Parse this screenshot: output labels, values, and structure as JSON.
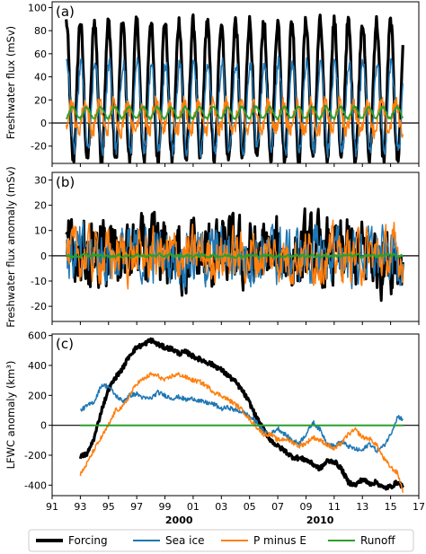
{
  "chart_data": [
    {
      "type": "line",
      "panel_label": "(a)",
      "ylabel": "Freshwater flux (mSv)",
      "xlim": [
        1991,
        2017
      ],
      "ylim": [
        -35,
        105
      ],
      "yticks": [
        -20,
        0,
        20,
        40,
        60,
        80,
        100
      ],
      "zero_line": true,
      "seasonal_series": [
        {
          "name": "Forcing",
          "mean": 28,
          "amplitude": 60,
          "phase": 0.0,
          "noise": 6,
          "color": "#000000",
          "width": 3.2
        },
        {
          "name": "Sea ice",
          "mean": 14,
          "amplitude": 38,
          "phase": 0.05,
          "noise": 6,
          "color": "#1f77b4",
          "width": 1.5
        },
        {
          "name": "P minus E",
          "mean": 5,
          "amplitude": 12,
          "phase": 0.35,
          "noise": 7,
          "color": "#ff7f0e",
          "width": 1.5
        },
        {
          "name": "Runoff",
          "mean": 9,
          "amplitude": 5,
          "phase": 0.45,
          "noise": 1,
          "color": "#2ca02c",
          "width": 1.8
        }
      ]
    },
    {
      "type": "line",
      "panel_label": "(b)",
      "ylabel": "Freshwater flux anomaly (mSv)",
      "xlim": [
        1991,
        2017
      ],
      "ylim": [
        -26,
        33
      ],
      "yticks": [
        -20,
        -10,
        0,
        10,
        20,
        30
      ],
      "zero_line": true,
      "anomaly_series": [
        {
          "name": "Forcing",
          "scale": 11,
          "color": "#000000",
          "width": 3.0
        },
        {
          "name": "Sea ice",
          "scale": 9,
          "color": "#1f77b4",
          "width": 1.5
        },
        {
          "name": "P minus E",
          "scale": 8,
          "color": "#ff7f0e",
          "width": 1.5
        },
        {
          "name": "Runoff",
          "scale": 0.6,
          "color": "#2ca02c",
          "width": 1.8
        }
      ]
    },
    {
      "type": "line",
      "panel_label": "(c)",
      "ylabel": "LFWC anomaly (km³)",
      "xlim": [
        1991,
        2017
      ],
      "ylim": [
        -470,
        610
      ],
      "yticks": [
        -400,
        -200,
        0,
        200,
        400,
        600
      ],
      "zero_line": true,
      "series": [
        {
          "name": "Forcing",
          "color": "#000000",
          "width": 3.2,
          "x": [
            1993.0,
            1993.5,
            1994.0,
            1994.5,
            1995.0,
            1995.5,
            1996.0,
            1996.5,
            1997.0,
            1997.5,
            1998.0,
            1998.5,
            1999.0,
            1999.5,
            2000.0,
            2000.5,
            2001.0,
            2001.5,
            2002.0,
            2002.5,
            2003.0,
            2003.5,
            2004.0,
            2004.5,
            2005.0,
            2005.5,
            2006.0,
            2006.5,
            2007.0,
            2007.5,
            2008.0,
            2008.5,
            2009.0,
            2009.5,
            2010.0,
            2010.5,
            2011.0,
            2011.5,
            2012.0,
            2012.5,
            2013.0,
            2013.5,
            2014.0,
            2014.5,
            2015.0,
            2015.5,
            2015.9
          ],
          "y": [
            -210,
            -190,
            -80,
            100,
            240,
            320,
            380,
            470,
            520,
            540,
            570,
            540,
            520,
            510,
            480,
            490,
            460,
            440,
            420,
            400,
            370,
            330,
            290,
            230,
            150,
            50,
            -30,
            -100,
            -140,
            -170,
            -210,
            -220,
            -230,
            -260,
            -290,
            -240,
            -240,
            -290,
            -380,
            -400,
            -360,
            -390,
            -380,
            -420,
            -410,
            -380,
            -410
          ]
        },
        {
          "name": "Sea ice",
          "color": "#1f77b4",
          "width": 1.5,
          "x": [
            1993.0,
            1993.5,
            1994.0,
            1994.5,
            1995.0,
            1995.5,
            1996.0,
            1996.5,
            1997.0,
            1997.5,
            1998.0,
            1998.5,
            1999.0,
            1999.5,
            2000.0,
            2000.5,
            2001.0,
            2001.5,
            2002.0,
            2002.5,
            2003.0,
            2003.5,
            2004.0,
            2004.5,
            2005.0,
            2005.5,
            2006.0,
            2006.5,
            2007.0,
            2007.5,
            2008.0,
            2008.5,
            2009.0,
            2009.5,
            2010.0,
            2010.5,
            2011.0,
            2011.5,
            2012.0,
            2012.5,
            2013.0,
            2013.5,
            2014.0,
            2014.5,
            2015.0,
            2015.5,
            2015.9
          ],
          "y": [
            100,
            130,
            160,
            270,
            260,
            200,
            160,
            200,
            210,
            180,
            180,
            220,
            200,
            180,
            190,
            170,
            180,
            160,
            150,
            140,
            110,
            120,
            100,
            90,
            60,
            20,
            -40,
            -60,
            -20,
            -60,
            -100,
            -120,
            -60,
            20,
            -30,
            -120,
            -140,
            -110,
            -140,
            -160,
            -170,
            -120,
            -170,
            -140,
            -60,
            60,
            40
          ]
        },
        {
          "name": "P minus E",
          "color": "#ff7f0e",
          "width": 1.5,
          "x": [
            1993.0,
            1993.5,
            1994.0,
            1994.5,
            1995.0,
            1995.5,
            1996.0,
            1996.5,
            1997.0,
            1997.5,
            1998.0,
            1998.5,
            1999.0,
            1999.5,
            2000.0,
            2000.5,
            2001.0,
            2001.5,
            2002.0,
            2002.5,
            2003.0,
            2003.5,
            2004.0,
            2004.5,
            2005.0,
            2005.5,
            2006.0,
            2006.5,
            2007.0,
            2007.5,
            2008.0,
            2008.5,
            2009.0,
            2009.5,
            2010.0,
            2010.5,
            2011.0,
            2011.5,
            2012.0,
            2012.5,
            2013.0,
            2013.5,
            2014.0,
            2014.5,
            2015.0,
            2015.5,
            2015.9
          ],
          "y": [
            -330,
            -250,
            -160,
            -80,
            0,
            100,
            120,
            200,
            280,
            310,
            340,
            330,
            300,
            330,
            340,
            320,
            300,
            290,
            260,
            220,
            200,
            170,
            140,
            100,
            40,
            -10,
            -60,
            -60,
            -100,
            -90,
            -110,
            -140,
            -120,
            -80,
            -100,
            -130,
            -160,
            -120,
            -60,
            -30,
            -80,
            -90,
            -130,
            -220,
            -280,
            -320,
            -450
          ]
        },
        {
          "name": "Runoff",
          "color": "#2ca02c",
          "width": 2.0,
          "x": [
            1993.0,
            2015.9
          ],
          "y": [
            0,
            0
          ]
        }
      ]
    }
  ],
  "xaxis": {
    "tick_labels": [
      "91",
      "93",
      "95",
      "97",
      "99",
      "01",
      "03",
      "05",
      "07",
      "09",
      "11",
      "13",
      "15",
      "17"
    ],
    "decade_labels": [
      {
        "x": 2000,
        "label": "2000"
      },
      {
        "x": 2010,
        "label": "2010"
      }
    ]
  },
  "legend": {
    "placement": "bottom",
    "entries": [
      {
        "label": "Forcing",
        "color": "#000000"
      },
      {
        "label": "Sea ice",
        "color": "#1f77b4"
      },
      {
        "label": "P minus E",
        "color": "#ff7f0e"
      },
      {
        "label": "Runoff",
        "color": "#2ca02c"
      }
    ]
  }
}
